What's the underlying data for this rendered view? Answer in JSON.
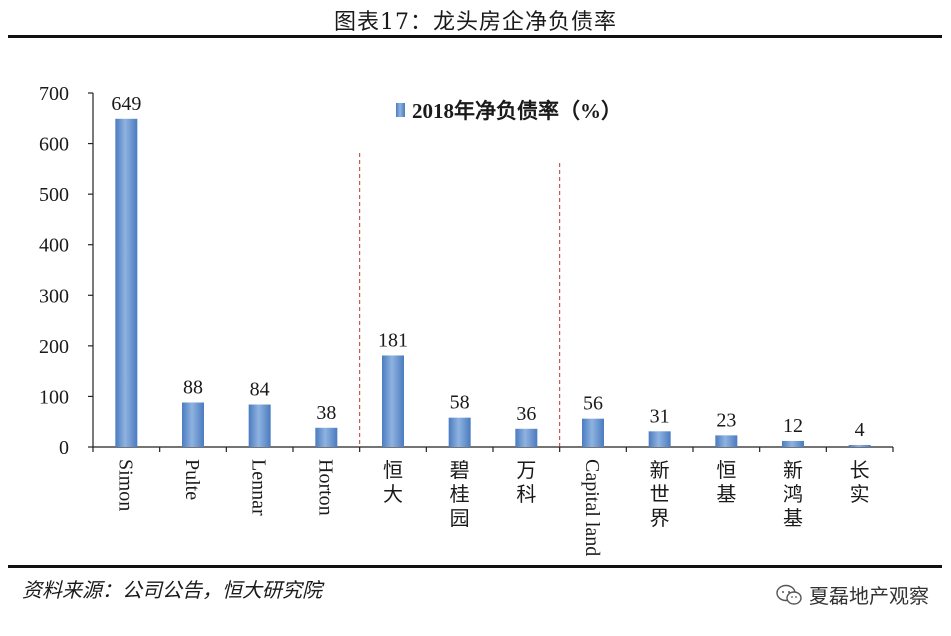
{
  "figure_title": "图表17：龙头房企净负债率",
  "source": "资料来源：公司公告，恒大研究院",
  "watermark": "夏磊地产观察",
  "watermark_icon": "wechat-icon",
  "colors": {
    "bar": "#4a7bbf",
    "bar_light": "#8fb3e0",
    "divider": "#c0392b"
  },
  "chart_data": {
    "type": "bar",
    "title": "",
    "xlabel": "",
    "ylabel": "",
    "ylim": [
      0,
      700
    ],
    "yticks": [
      0,
      100,
      200,
      300,
      400,
      500,
      600,
      700
    ],
    "categories": [
      "Simon",
      "Pulte",
      "Lennar",
      "Horton",
      "恒大",
      "碧桂园",
      "万科",
      "Capital land",
      "新世界",
      "恒基",
      "新鸿基",
      "长实"
    ],
    "series": [
      {
        "name": "2018年净负债率（%）",
        "values": [
          649,
          88,
          84,
          38,
          181,
          58,
          36,
          56,
          31,
          23,
          12,
          4
        ]
      }
    ],
    "legend_position": "top-center",
    "grid": false,
    "group_dividers_after_index": [
      3,
      6
    ]
  }
}
